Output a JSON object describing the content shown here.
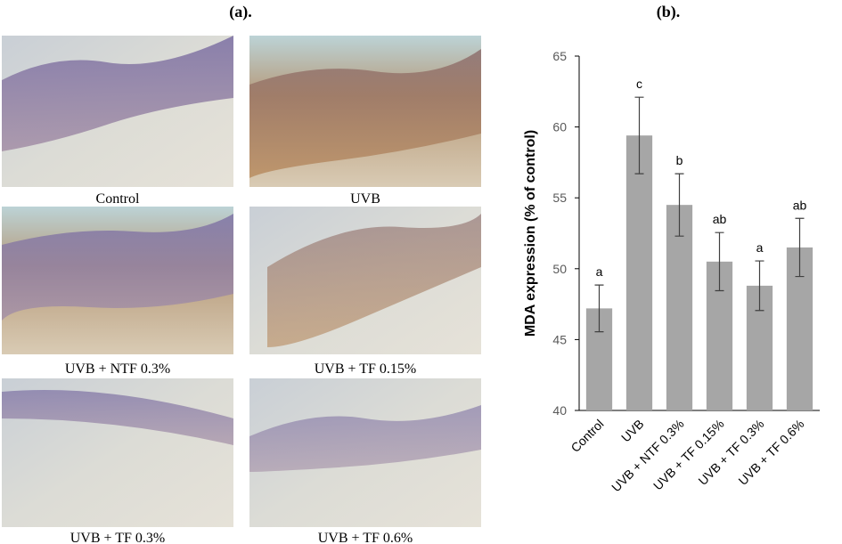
{
  "panel_a": {
    "label": "(a).",
    "captions": [
      "Control",
      "UVB",
      "UVB + NTF 0.3%",
      "UVB + TF 0.15%",
      "UVB + TF 0.3%",
      "UVB + TF 0.6%"
    ]
  },
  "chart_data": {
    "type": "bar",
    "panel_label": "(b).",
    "y_label": "MDA expression (% of control)",
    "categories": [
      "Control",
      "UVB",
      "UVB + NTF 0.3%",
      "UVB + TF 0.15%",
      "UVB + TF 0.3%",
      "UVB + TF 0.6%"
    ],
    "values": [
      47.2,
      59.4,
      54.5,
      50.5,
      48.8,
      51.5
    ],
    "errors": [
      1.65,
      2.7,
      2.2,
      2.05,
      1.75,
      2.05
    ],
    "annotations": [
      "a",
      "c",
      "b",
      "ab",
      "a",
      "ab"
    ],
    "color": "#a6a6a6",
    "error_color": "#404040",
    "ylim": [
      40,
      65
    ],
    "yticks": [
      40,
      45,
      50,
      55,
      60,
      65
    ],
    "grid": false
  }
}
